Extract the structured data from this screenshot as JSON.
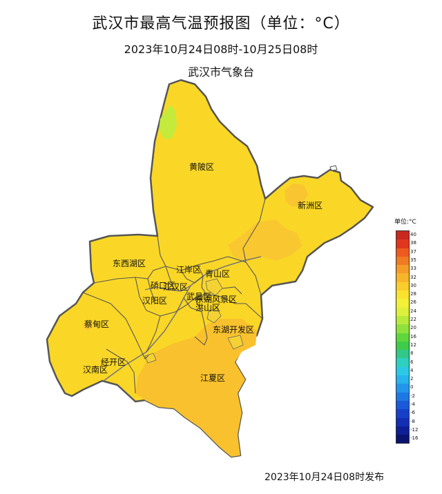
{
  "title": "武汉市最高气温预报图（单位：°C）",
  "subtitle": "2023年10月24日08时-10月25日08时",
  "agency": "武汉市气象台",
  "issued": "2023年10月24日08时发布",
  "legend": {
    "title": "单位:°C",
    "items": [
      {
        "label": "40",
        "color": "#c8281e"
      },
      {
        "label": "38",
        "color": "#e0361e"
      },
      {
        "label": "37",
        "color": "#ee5a1e"
      },
      {
        "label": "35",
        "color": "#f07a22"
      },
      {
        "label": "33",
        "color": "#f59b28"
      },
      {
        "label": "32",
        "color": "#f7b52a"
      },
      {
        "label": "30",
        "color": "#f9cd2b"
      },
      {
        "label": "28",
        "color": "#fae22f"
      },
      {
        "label": "26",
        "color": "#f2f037"
      },
      {
        "label": "24",
        "color": "#ddf03c"
      },
      {
        "label": "22",
        "color": "#b8ea3c"
      },
      {
        "label": "20",
        "color": "#8fe23c"
      },
      {
        "label": "16",
        "color": "#5fd73c"
      },
      {
        "label": "12",
        "color": "#3fcc4a"
      },
      {
        "label": "8",
        "color": "#31c889"
      },
      {
        "label": "6",
        "color": "#2ed0c0"
      },
      {
        "label": "4",
        "color": "#2cc9e6"
      },
      {
        "label": "2",
        "color": "#28b4ee"
      },
      {
        "label": "0",
        "color": "#2296ea"
      },
      {
        "label": "-2",
        "color": "#1e78e2"
      },
      {
        "label": "-4",
        "color": "#1a5ad8"
      },
      {
        "label": "-6",
        "color": "#1640c8"
      },
      {
        "label": "-8",
        "color": "#122eb2"
      },
      {
        "label": "-12",
        "color": "#0e1f96"
      },
      {
        "label": "-16",
        "color": "#0a1470"
      }
    ]
  },
  "districts": {
    "huangpi": "黄陂区",
    "xinzhou": "新洲区",
    "dongxihu": "东西湖区",
    "jiangan": "江岸区",
    "qingshan": "青山区",
    "qiaokou": "硚口区",
    "jianghan": "江汉区",
    "hanyang": "汉阳区",
    "wuchang": "武昌区",
    "fengjing": "东湖风景区",
    "hongshan": "洪山区",
    "caidian": "蔡甸区",
    "donghukaifa": "东湖开发区",
    "jingkai": "经开区",
    "hannan": "汉南区",
    "jiangxia": "江夏区"
  },
  "colors": {
    "main": "#fad726",
    "warm": "#f9c12d",
    "cool": "#bde83a",
    "border": "#555555"
  }
}
